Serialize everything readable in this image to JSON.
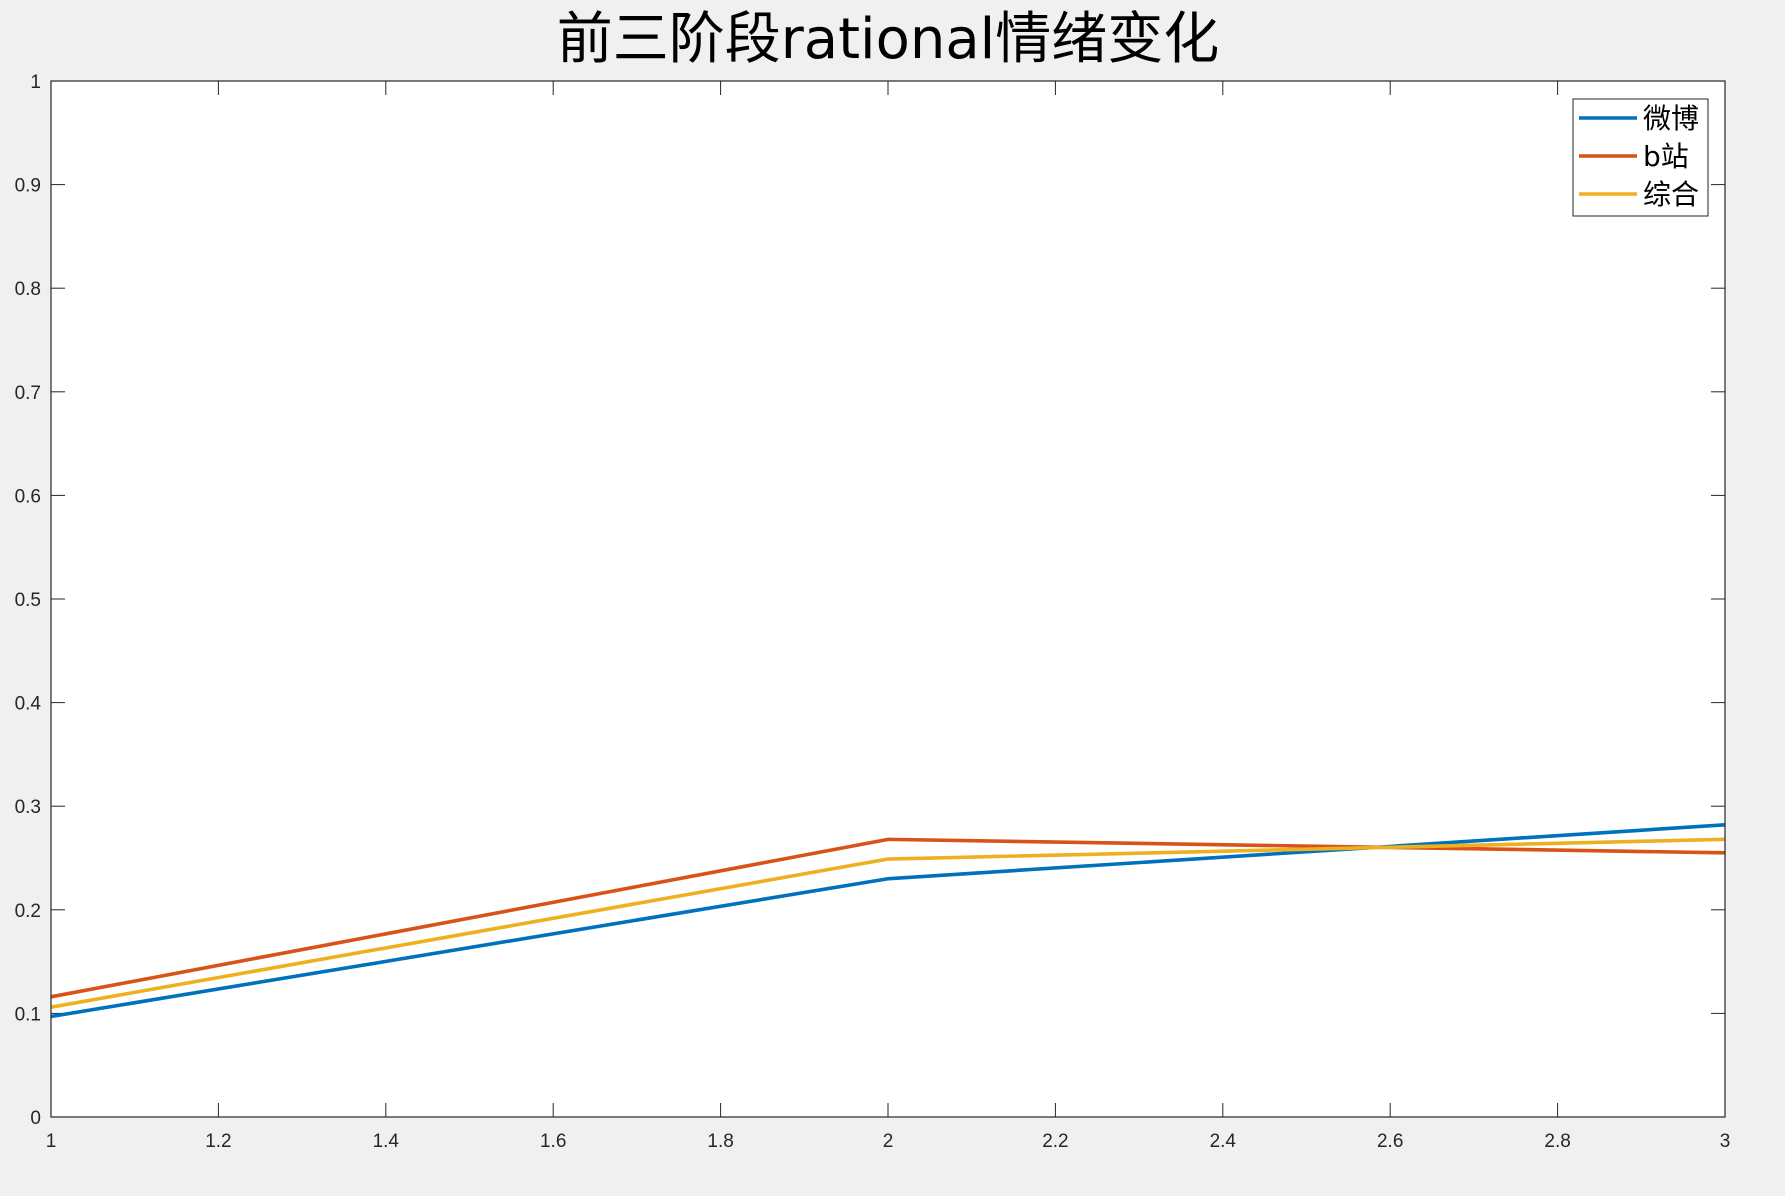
{
  "chart_data": {
    "type": "line",
    "title": "前三阶段rational情绪变化",
    "xlabel": "",
    "ylabel": "",
    "xlim": [
      1,
      3
    ],
    "ylim": [
      0,
      1
    ],
    "x": [
      1,
      2,
      3
    ],
    "xticks": [
      "1",
      "1.2",
      "1.4",
      "1.6",
      "1.8",
      "2",
      "2.2",
      "2.4",
      "2.6",
      "2.8",
      "3"
    ],
    "yticks": [
      "0",
      "0.1",
      "0.2",
      "0.3",
      "0.4",
      "0.5",
      "0.6",
      "0.7",
      "0.8",
      "0.9",
      "1"
    ],
    "grid": false,
    "legend_position": "top-right",
    "series": [
      {
        "name": "微博",
        "color": "#0072BD",
        "values": [
          0.097,
          0.23,
          0.282
        ]
      },
      {
        "name": "b站",
        "color": "#D95319",
        "values": [
          0.116,
          0.268,
          0.255
        ]
      },
      {
        "name": "综合",
        "color": "#EDB120",
        "values": [
          0.106,
          0.249,
          0.268
        ]
      }
    ]
  }
}
